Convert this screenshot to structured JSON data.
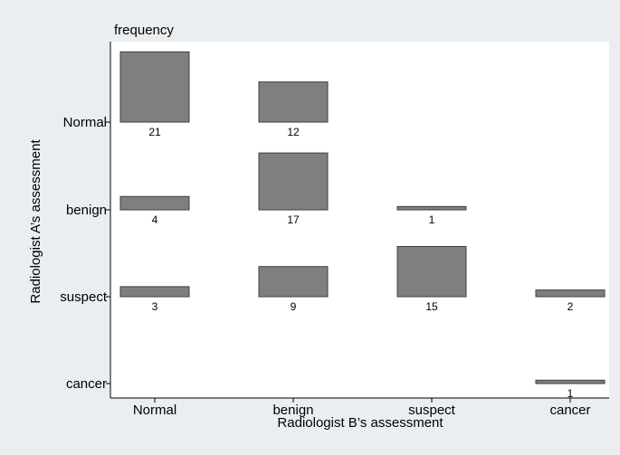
{
  "chart_data": {
    "type": "bar",
    "subtitle": "frequency",
    "xlabel": "Radiologist B’s assessment",
    "ylabel": "Radiologist A’s assessment",
    "x_categories": [
      "Normal",
      "benign",
      "suspect",
      "cancer"
    ],
    "y_categories": [
      "Normal",
      "benign",
      "suspect",
      "cancer"
    ],
    "series": [
      {
        "row": "Normal",
        "values": [
          21,
          12,
          null,
          null
        ]
      },
      {
        "row": "benign",
        "values": [
          4,
          17,
          1,
          null
        ]
      },
      {
        "row": "suspect",
        "values": [
          3,
          9,
          15,
          2
        ]
      },
      {
        "row": "cancer",
        "values": [
          null,
          null,
          null,
          1
        ]
      }
    ],
    "grid": true,
    "legend": "none",
    "colors": {
      "bar_fill": "#7f7f7f",
      "bar_stroke": "#3f3f3f",
      "plot_bg": "#ffffff",
      "outer_bg": "#eaeef1",
      "grid": "#eaeef1"
    }
  }
}
